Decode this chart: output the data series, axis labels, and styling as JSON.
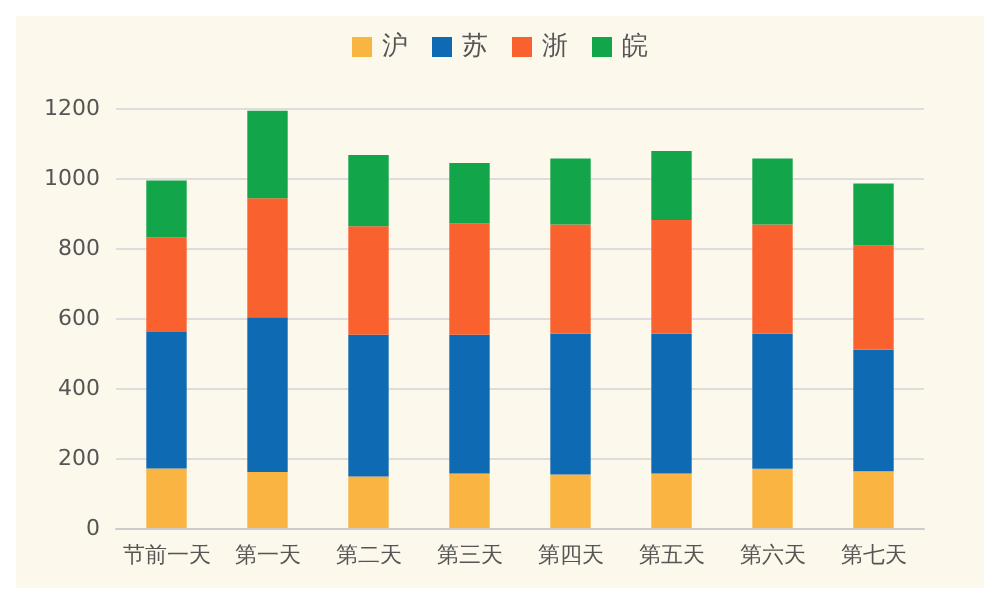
{
  "chart_data": {
    "type": "bar",
    "stacked": true,
    "categories": [
      "节前一天",
      "第一天",
      "第二天",
      "第三天",
      "第四天",
      "第五天",
      "第六天",
      "第七天"
    ],
    "series": [
      {
        "name": "沪",
        "color": "#f9b442",
        "values": [
          170,
          160,
          147,
          156,
          153,
          156,
          169,
          162
        ]
      },
      {
        "name": "苏",
        "color": "#0f6ab4",
        "values": [
          390,
          442,
          405,
          396,
          402,
          399,
          386,
          347
        ]
      },
      {
        "name": "浙",
        "color": "#f9622f",
        "values": [
          270,
          340,
          310,
          319,
          312,
          325,
          312,
          299
        ]
      },
      {
        "name": "皖",
        "color": "#12a54a",
        "values": [
          163,
          250,
          204,
          172,
          189,
          197,
          189,
          176
        ]
      }
    ],
    "ylim": [
      0,
      1200
    ],
    "yticks": [
      0,
      200,
      400,
      600,
      800,
      1000,
      1200
    ],
    "grid": "y",
    "legend": "top"
  }
}
